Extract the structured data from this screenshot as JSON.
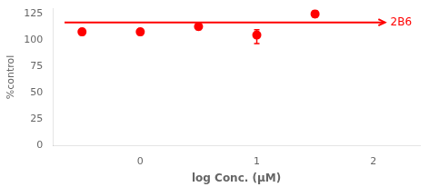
{
  "chart_data": {
    "type": "scatter",
    "xlabel": "log Conc. (μM)",
    "ylabel": "%control",
    "xlim": [
      -0.75,
      2.4
    ],
    "xticks": [
      0,
      1,
      2
    ],
    "ylim": [
      0,
      130
    ],
    "yticks": [
      0,
      25,
      50,
      75,
      100,
      125
    ],
    "grid": false,
    "series": [
      {
        "type": "scatter",
        "x": [
          -0.5,
          0.0,
          0.5,
          1.0,
          1.5
        ],
        "values": [
          108,
          108,
          113,
          105,
          125
        ],
        "error_low": [
          3,
          3,
          3,
          8,
          3
        ],
        "error_high": [
          3,
          3,
          3,
          5,
          3
        ],
        "color": "#ff0000",
        "marker": "circle"
      },
      {
        "name": "2B6",
        "type": "line",
        "x": [
          -0.65,
          2.1
        ],
        "values": [
          117,
          117
        ],
        "color": "#ff0000",
        "marker": "arrow"
      }
    ]
  }
}
